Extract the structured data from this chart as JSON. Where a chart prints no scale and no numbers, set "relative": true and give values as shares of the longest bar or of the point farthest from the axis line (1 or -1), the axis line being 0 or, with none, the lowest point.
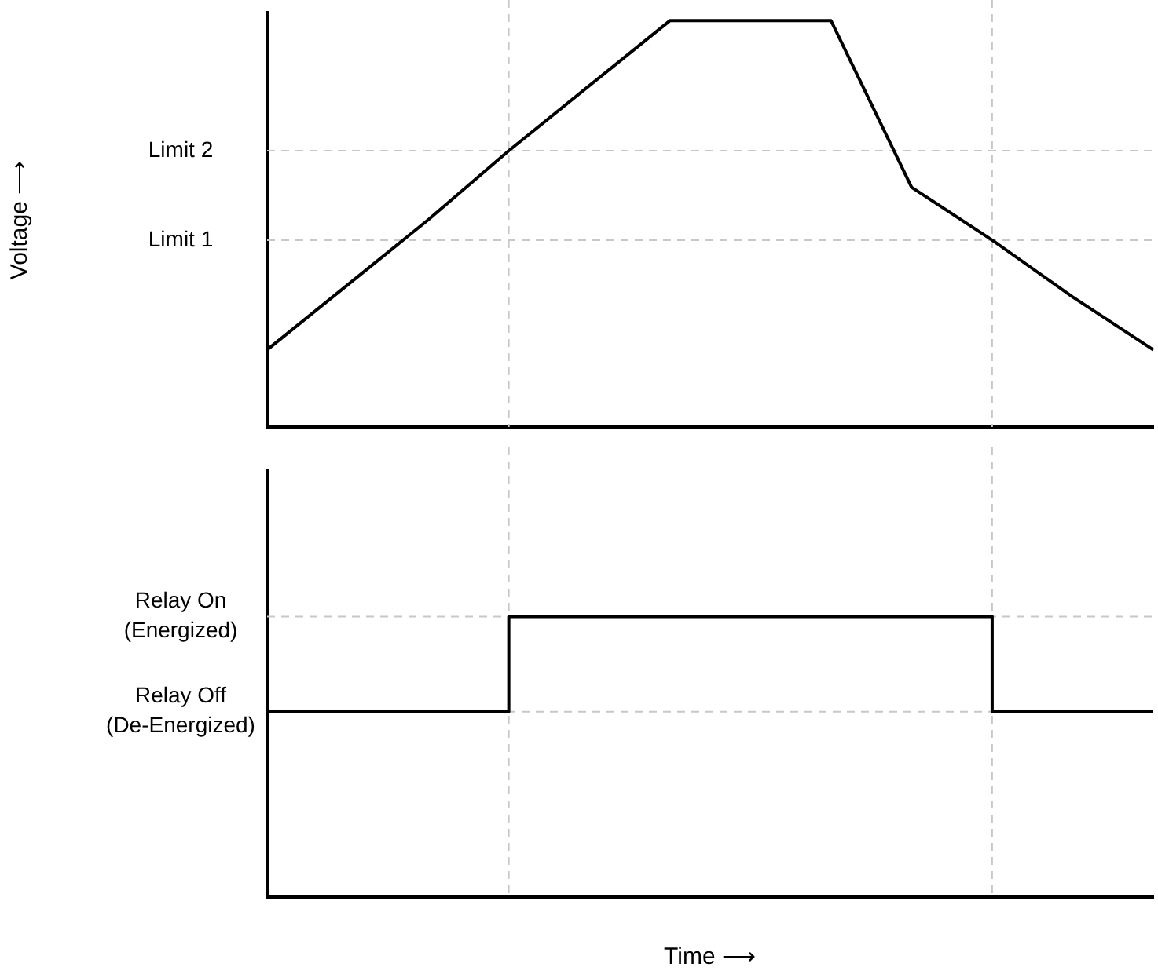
{
  "chart_data": [
    {
      "type": "line",
      "relative": true,
      "ylabel": "Voltage ⟶",
      "categories": [
        null,
        null,
        null,
        null,
        null,
        null,
        null,
        null,
        null,
        null,
        null,
        null
      ],
      "series": [
        {
          "color": "#000000",
          "values": [
            0.19,
            0.35,
            0.51,
            0.68,
            0.84,
            1,
            1,
            1,
            0.59,
            0.46,
            0.32,
            0.19
          ]
        }
      ],
      "ref_lines": [
        {
          "axis": "y",
          "value": 0.68,
          "label": "Limit 2",
          "color": "#c8c8c8",
          "line_style": "dashed"
        },
        {
          "axis": "y",
          "value": 0.46,
          "label": "Limit 1",
          "color": "#c8c8c8",
          "line_style": "dashed"
        }
      ]
    },
    {
      "type": "step",
      "relative": true,
      "xlabel": "Time ⟶",
      "categories": [
        null,
        null,
        null,
        null,
        null,
        null,
        null,
        null,
        null,
        null,
        null,
        null
      ],
      "series": [
        {
          "color": "#000000",
          "values": [
            0.66,
            0.66,
            0.66,
            1,
            1,
            1,
            1,
            1,
            1,
            0.66,
            0.66,
            0.66
          ]
        }
      ],
      "annotations": [
        "Relay On\n(Energized)",
        "Relay Off\n(De-Energized)"
      ]
    }
  ]
}
